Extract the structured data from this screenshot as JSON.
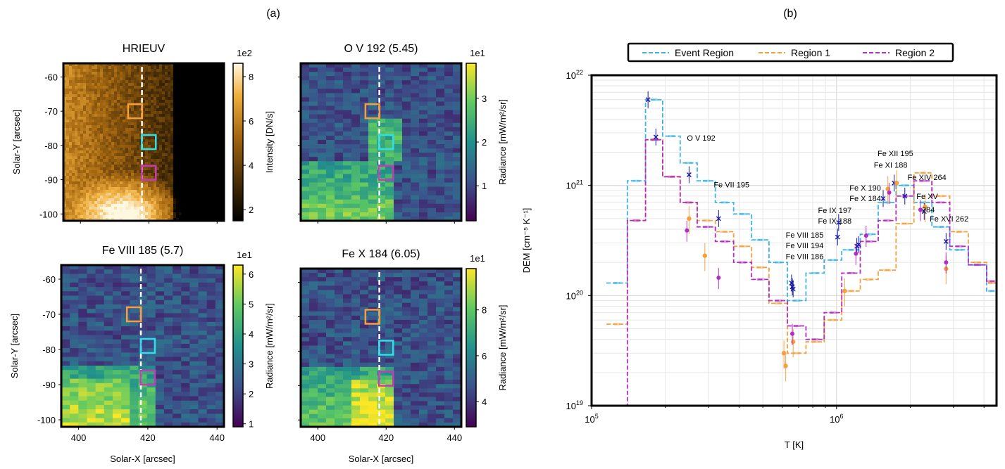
{
  "figure": {
    "label_a": "(a)",
    "label_b": "(b)"
  },
  "maps": [
    {
      "id": "hrieuv",
      "title": "HRIEUV",
      "cb_multiplier": "1e2",
      "cb_label": "Intensity [DN/s]",
      "cb_ticks": [
        "2",
        "4",
        "6",
        "8"
      ],
      "cb_range": [
        1.5,
        8.6
      ],
      "colormap": "gold",
      "show_xticks": false,
      "ylabel": "Solar-Y [arcsec]",
      "xlabel": ""
    },
    {
      "id": "ov192",
      "title": "O V 192 (5.45)",
      "cb_multiplier": "1e1",
      "cb_label": "Radiance [mW/m²/sr]",
      "cb_ticks": [
        "1",
        "2",
        "3"
      ],
      "cb_range": [
        0.2,
        3.8
      ],
      "colormap": "viridis",
      "show_xticks": false,
      "ylabel": "",
      "xlabel": ""
    },
    {
      "id": "fe8185",
      "title": "Fe VIII 185 (5.7)",
      "cb_multiplier": "1e1",
      "cb_label": "Radiance [mW/m²/sr]",
      "cb_ticks": [
        "1",
        "2",
        "3",
        "4",
        "5",
        "6"
      ],
      "cb_range": [
        0.9,
        6.3
      ],
      "colormap": "viridis",
      "show_xticks": true,
      "ylabel": "Solar-Y [arcsec]",
      "xlabel": "Solar-X [arcsec]"
    },
    {
      "id": "fe10184",
      "title": "Fe X 184 (6.05)",
      "cb_multiplier": "1e1",
      "cb_label": "Radiance [mW/m²/sr]",
      "cb_ticks": [
        "4",
        "6",
        "8"
      ],
      "cb_range": [
        2.9,
        9.8
      ],
      "colormap": "viridis",
      "show_xticks": true,
      "ylabel": "",
      "xlabel": "Solar-X [arcsec]"
    }
  ],
  "map_axes": {
    "x_ticks": [
      "400",
      "420",
      "440"
    ],
    "y_ticks": [
      "-60",
      "-70",
      "-80",
      "-90",
      "-100"
    ],
    "boxes": [
      {
        "name": "orange-box",
        "color": "#f5a03c",
        "x": 416,
        "y": -70
      },
      {
        "name": "cyan-box",
        "color": "#2de0e8",
        "x": 420,
        "y": -79
      },
      {
        "name": "magenta-box",
        "color": "#c43cb4",
        "x": 420,
        "y": -88
      }
    ],
    "slit_x": 418
  },
  "legend": {
    "items": [
      {
        "label": "Event  Region",
        "color": "#3cb4e6"
      },
      {
        "label": "Region 1",
        "color": "#f5a03c"
      },
      {
        "label": "Region 2",
        "color": "#b42dc3"
      }
    ]
  },
  "chart_data": {
    "type": "line",
    "title": "",
    "xlabel": "T [K]",
    "ylabel": "DEM [cm⁻⁵ K⁻¹]",
    "xscale": "log",
    "yscale": "log",
    "xlim": [
      100000,
      4500000
    ],
    "ylim": [
      1e+19,
      1e+22
    ],
    "x_tick_labels": [
      "10^5",
      "10^6"
    ],
    "y_tick_labels": [
      "10^19",
      "10^20",
      "10^21",
      "10^22"
    ],
    "grid": true,
    "legend_position": "top-center",
    "series": [
      {
        "name": "Event  Region",
        "color": "#3cb4e6",
        "edges": [
          115000,
          140000,
          166000,
          195000,
          230000,
          270000,
          320000,
          380000,
          450000,
          530000,
          630000,
          750000,
          890000,
          1050000,
          1250000,
          1480000,
          1750000,
          2070000,
          2450000,
          2900000,
          3450000,
          4100000
        ],
        "values": [
          1.3e+20,
          1.1e+21,
          6e+21,
          2.8e+21,
          1.6e+21,
          1.1e+21,
          7e+20,
          5.5e+20,
          3.2e+20,
          2e+20,
          9e+19,
          1.6e+20,
          2.1e+20,
          2.6e+20,
          3.6e+20,
          7e+20,
          1e+21,
          7e+20,
          4.2e+20,
          2.6e+20,
          1.9e+20,
          1.1e+20
        ]
      },
      {
        "name": "Region 1",
        "color": "#f5a03c",
        "edges": [
          115000,
          140000,
          166000,
          195000,
          230000,
          270000,
          320000,
          380000,
          450000,
          530000,
          630000,
          750000,
          890000,
          1050000,
          1250000,
          1480000,
          1750000,
          2070000,
          2450000,
          2900000,
          3450000,
          4100000
        ],
        "values": [
          5.5e+19,
          4.8e+20,
          2.6e+21,
          1.2e+21,
          7e+20,
          4.8e+20,
          3.8e+20,
          2.8e+20,
          1.8e+20,
          8.5e+19,
          3e+19,
          3.8e+19,
          6e+19,
          1.1e+20,
          1.4e+20,
          1.7e+20,
          4.5e+20,
          1.3e+21,
          8e+20,
          3.8e+20,
          2e+20,
          1.3e+20
        ]
      },
      {
        "name": "Region 2",
        "color": "#b42dc3",
        "edges": [
          115000,
          140000,
          166000,
          195000,
          230000,
          270000,
          320000,
          380000,
          450000,
          530000,
          630000,
          750000,
          890000,
          1050000,
          1250000,
          1480000,
          1750000,
          2070000,
          2450000,
          2900000,
          3450000,
          4100000
        ],
        "values": [
          1e+19,
          4.8e+20,
          2.6e+21,
          1.2e+21,
          7e+20,
          4.2e+20,
          3.1e+20,
          2e+20,
          1.4e+20,
          9e+19,
          5.3e+19,
          4e+19,
          7e+19,
          1.6e+20,
          3.1e+20,
          4.8e+20,
          8e+20,
          1.1e+21,
          7e+20,
          2.8e+20,
          1.9e+20,
          1.35e+20
        ]
      }
    ],
    "line_labels": [
      {
        "text": "O V 192",
        "x": 245000,
        "y": 2.55e+21
      },
      {
        "text": "Fe VII 195",
        "x": 315000,
        "y": 9.6e+20
      },
      {
        "text": "Fe VIII 185",
        "x": 620000,
        "y": 3.35e+20
      },
      {
        "text": "Fe VIII 194",
        "x": 620000,
        "y": 2.7e+20
      },
      {
        "text": "Fe VIII 186",
        "x": 620000,
        "y": 2.15e+20
      },
      {
        "text": "Fe IX 197",
        "x": 840000,
        "y": 5.6e+20
      },
      {
        "text": "Fe IX 188",
        "x": 840000,
        "y": 4.5e+20
      },
      {
        "text": "Fe X 190",
        "x": 1130000,
        "y": 9e+20
      },
      {
        "text": "Fe X 184",
        "x": 1130000,
        "y": 7.2e+20
      },
      {
        "text": "Fe XII 195",
        "x": 1470000,
        "y": 1.85e+21
      },
      {
        "text": "Fe XI 188",
        "x": 1420000,
        "y": 1.45e+21
      },
      {
        "text": "Fe XIV 264",
        "x": 1950000,
        "y": 1.12e+21
      },
      {
        "text": "Fe XV",
        "x": 2120000,
        "y": 7.5e+20
      },
      {
        "text": "284",
        "x": 2230000,
        "y": 5.7e+20
      },
      {
        "text": "Fe XVI 262",
        "x": 2400000,
        "y": 4.7e+20
      }
    ],
    "measurements": {
      "event_region": [
        {
          "x": 170000,
          "y": 6e+21
        },
        {
          "x": 183000,
          "y": 2.75e+21
        },
        {
          "x": 250000,
          "y": 1.25e+21
        },
        {
          "x": 330000,
          "y": 5e+20
        },
        {
          "x": 655000,
          "y": 1.3e+20
        },
        {
          "x": 665000,
          "y": 1.15e+20
        },
        {
          "x": 660000,
          "y": 1.2e+20
        },
        {
          "x": 1020000,
          "y": 4.6e+20
        },
        {
          "x": 1010000,
          "y": 3.4e+20
        },
        {
          "x": 1230000,
          "y": 2.9e+20
        },
        {
          "x": 1210000,
          "y": 2.8e+20
        },
        {
          "x": 1550000,
          "y": 7.6e+20
        },
        {
          "x": 1720000,
          "y": 1.05e+21
        },
        {
          "x": 1900000,
          "y": 8e+20
        },
        {
          "x": 2280000,
          "y": 5.8e+20
        },
        {
          "x": 2800000,
          "y": 3.1e+20
        }
      ],
      "region1": [
        {
          "x": 250000,
          "y": 5e+20
        },
        {
          "x": 290000,
          "y": 2.3e+20
        },
        {
          "x": 610000,
          "y": 3e+19
        },
        {
          "x": 620000,
          "y": 2.3e+19
        },
        {
          "x": 665000,
          "y": 3.8e+19
        },
        {
          "x": 1080000,
          "y": 1.1e+20
        },
        {
          "x": 1620000,
          "y": 9.3e+20
        },
        {
          "x": 1760000,
          "y": 1.05e+21
        },
        {
          "x": 2300000,
          "y": 6.4e+20
        },
        {
          "x": 2800000,
          "y": 1.75e+20
        }
      ],
      "region2": [
        {
          "x": 245000,
          "y": 3.9e+20
        },
        {
          "x": 330000,
          "y": 1.45e+20
        },
        {
          "x": 660000,
          "y": 4.5e+19
        },
        {
          "x": 1200000,
          "y": 2.4e+20
        },
        {
          "x": 1320000,
          "y": 3.5e+20
        },
        {
          "x": 1640000,
          "y": 8.6e+20
        },
        {
          "x": 2200000,
          "y": 6e+20
        },
        {
          "x": 2800000,
          "y": 2e+20
        }
      ]
    }
  }
}
